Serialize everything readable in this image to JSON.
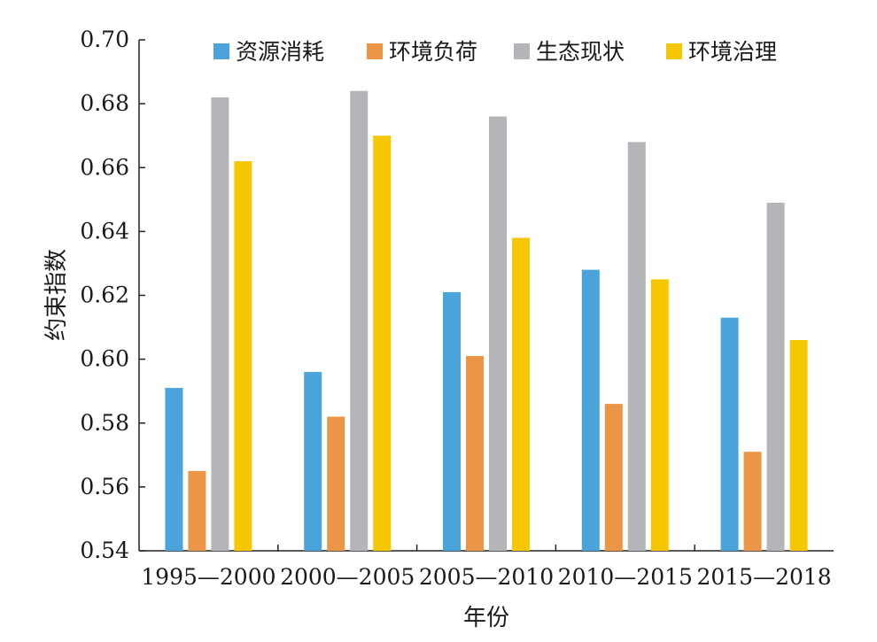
{
  "chart_data": {
    "type": "bar",
    "categories": [
      "1995—2000",
      "2000—2005",
      "2005—2010",
      "2010—2015",
      "2015—2018"
    ],
    "series": [
      {
        "name": "资源消耗",
        "color": "#4BA3DB",
        "values": [
          0.591,
          0.596,
          0.621,
          0.628,
          0.613
        ]
      },
      {
        "name": "环境负荷",
        "color": "#EA9646",
        "values": [
          0.565,
          0.582,
          0.601,
          0.586,
          0.571
        ]
      },
      {
        "name": "生态现状",
        "color": "#B3B5B8",
        "values": [
          0.682,
          0.684,
          0.676,
          0.668,
          0.649
        ]
      },
      {
        "name": "环境治理",
        "color": "#F6C600",
        "values": [
          0.662,
          0.67,
          0.638,
          0.625,
          0.606
        ]
      }
    ],
    "xlabel": "年份",
    "ylabel": "约束指数",
    "ylim": [
      0.54,
      0.7
    ],
    "yticks": [
      "0.54",
      "0.56",
      "0.58",
      "0.60",
      "0.62",
      "0.64",
      "0.66",
      "0.68",
      "0.70"
    ],
    "legend_position": "top",
    "grid": false
  }
}
